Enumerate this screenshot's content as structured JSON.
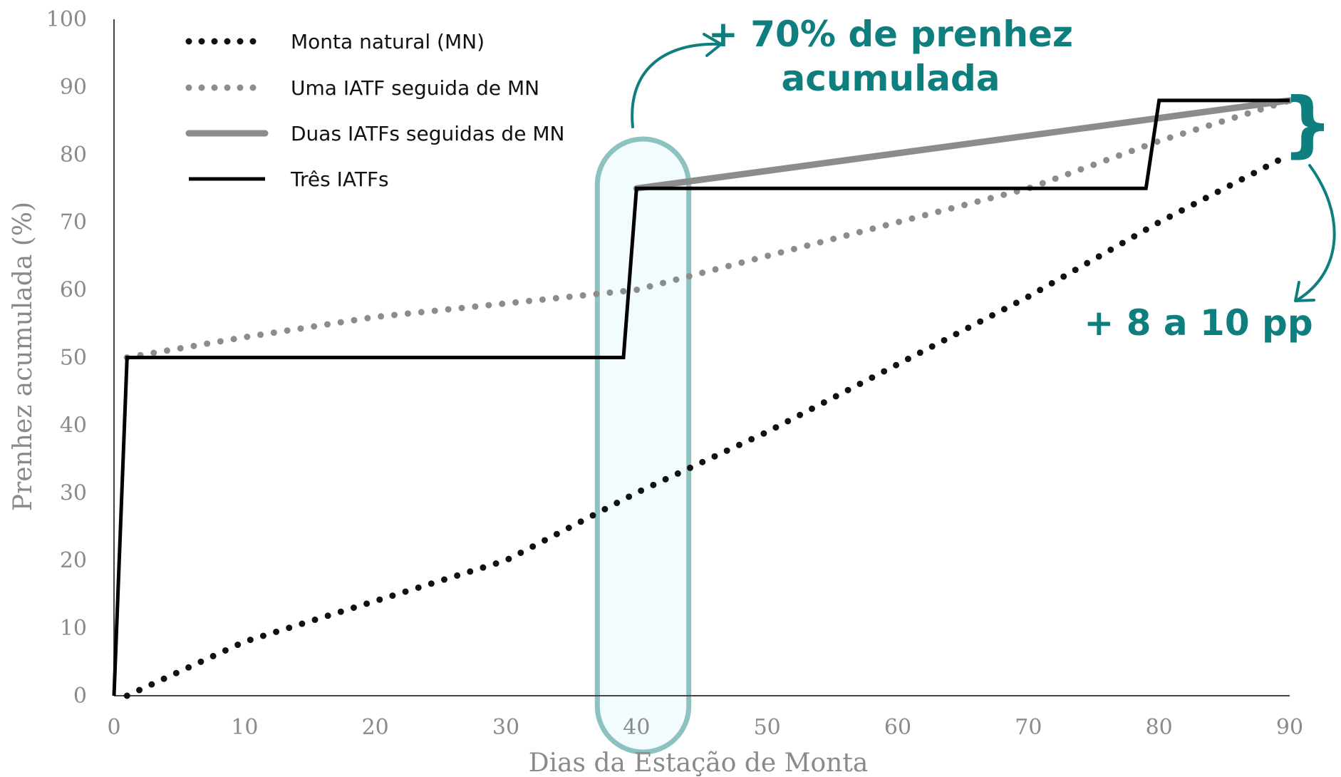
{
  "chart_data": {
    "type": "line",
    "title": "",
    "xlabel": "Dias da Estação de Monta",
    "ylabel": "Prenhez acumulada (%)",
    "xlim": [
      0,
      90
    ],
    "ylim": [
      0,
      100
    ],
    "x_ticks": [
      0,
      10,
      20,
      30,
      40,
      50,
      60,
      70,
      80,
      90
    ],
    "y_ticks": [
      0,
      10,
      20,
      30,
      40,
      50,
      60,
      70,
      80,
      90,
      100
    ],
    "grid": false,
    "legend_position": "top-left",
    "series": [
      {
        "name": "Monta natural (MN)",
        "style": "dotted",
        "color": "#111111",
        "points": [
          [
            1,
            0
          ],
          [
            10,
            8
          ],
          [
            20,
            14
          ],
          [
            30,
            20
          ],
          [
            40,
            30
          ],
          [
            50,
            39
          ],
          [
            60,
            49
          ],
          [
            70,
            59
          ],
          [
            80,
            70
          ],
          [
            90,
            80
          ]
        ]
      },
      {
        "name": "Uma IATF seguida de MN",
        "style": "dotted",
        "color": "#8c8c8c",
        "points": [
          [
            1,
            50
          ],
          [
            10,
            53
          ],
          [
            20,
            56
          ],
          [
            30,
            58
          ],
          [
            40,
            60
          ],
          [
            50,
            65
          ],
          [
            60,
            70
          ],
          [
            70,
            75
          ],
          [
            80,
            82
          ],
          [
            90,
            88
          ]
        ]
      },
      {
        "name": "Duas IATFs seguidas de MN",
        "style": "thick",
        "color": "#8c8c8c",
        "points": [
          [
            40,
            75
          ],
          [
            90,
            88
          ]
        ]
      },
      {
        "name": "Três IATFs",
        "style": "solid",
        "color": "#000000",
        "points": [
          [
            0,
            0
          ],
          [
            1,
            50
          ],
          [
            39,
            50
          ],
          [
            40,
            75
          ],
          [
            79,
            75
          ],
          [
            80,
            88
          ],
          [
            90,
            88
          ]
        ]
      }
    ],
    "highlight": {
      "x_range": [
        37,
        44
      ],
      "color": "#8cc3c1",
      "fill": "#f2fbfd"
    },
    "annotations": [
      {
        "lines": [
          "+ 70% de prenhez",
          "acumulada"
        ],
        "color": "#0f7e7f"
      },
      {
        "lines": [
          "+ 8 a 10 pp"
        ],
        "color": "#0f7e7f"
      }
    ],
    "brace_symbol": "}"
  }
}
